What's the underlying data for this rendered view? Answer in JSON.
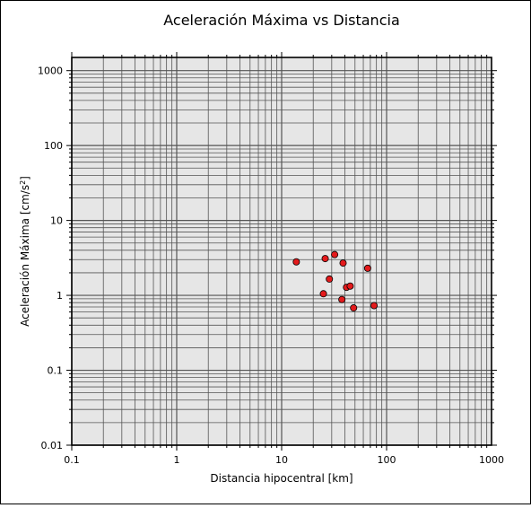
{
  "chart_data": {
    "type": "scatter",
    "title": "Aceleración Máxima vs Distancia",
    "xlabel": "Distancia hipocentral [km]",
    "ylabel_main": "Aceleración Máxima [cm/s",
    "ylabel_sup": "2",
    "ylabel_end": "]",
    "x_scale": "log",
    "y_scale": "log",
    "xlim": [
      0.1,
      1000
    ],
    "ylim": [
      0.01,
      1500
    ],
    "grid": true,
    "x_ticks": [
      {
        "value": 0.1,
        "label": "0.1"
      },
      {
        "value": 1,
        "label": "1"
      },
      {
        "value": 10,
        "label": "10"
      },
      {
        "value": 100,
        "label": "100"
      },
      {
        "value": 1000,
        "label": "1000"
      }
    ],
    "y_ticks": [
      {
        "value": 0.01,
        "label": "0.01"
      },
      {
        "value": 0.1,
        "label": "0.1"
      },
      {
        "value": 1,
        "label": "1"
      },
      {
        "value": 10,
        "label": "10"
      },
      {
        "value": 100,
        "label": "100"
      },
      {
        "value": 1000,
        "label": "1000"
      }
    ],
    "points": [
      {
        "x": 13.8,
        "y": 2.8
      },
      {
        "x": 25.0,
        "y": 1.05
      },
      {
        "x": 26.0,
        "y": 3.1
      },
      {
        "x": 28.5,
        "y": 1.65
      },
      {
        "x": 32.0,
        "y": 3.5
      },
      {
        "x": 37.5,
        "y": 0.88
      },
      {
        "x": 38.5,
        "y": 2.7
      },
      {
        "x": 41.5,
        "y": 1.28
      },
      {
        "x": 45.0,
        "y": 1.33
      },
      {
        "x": 48.5,
        "y": 0.68
      },
      {
        "x": 66.0,
        "y": 2.3
      },
      {
        "x": 76.0,
        "y": 0.73
      }
    ],
    "marker_color": "#e31a1c",
    "plot_bg": "#e6e6e6"
  }
}
